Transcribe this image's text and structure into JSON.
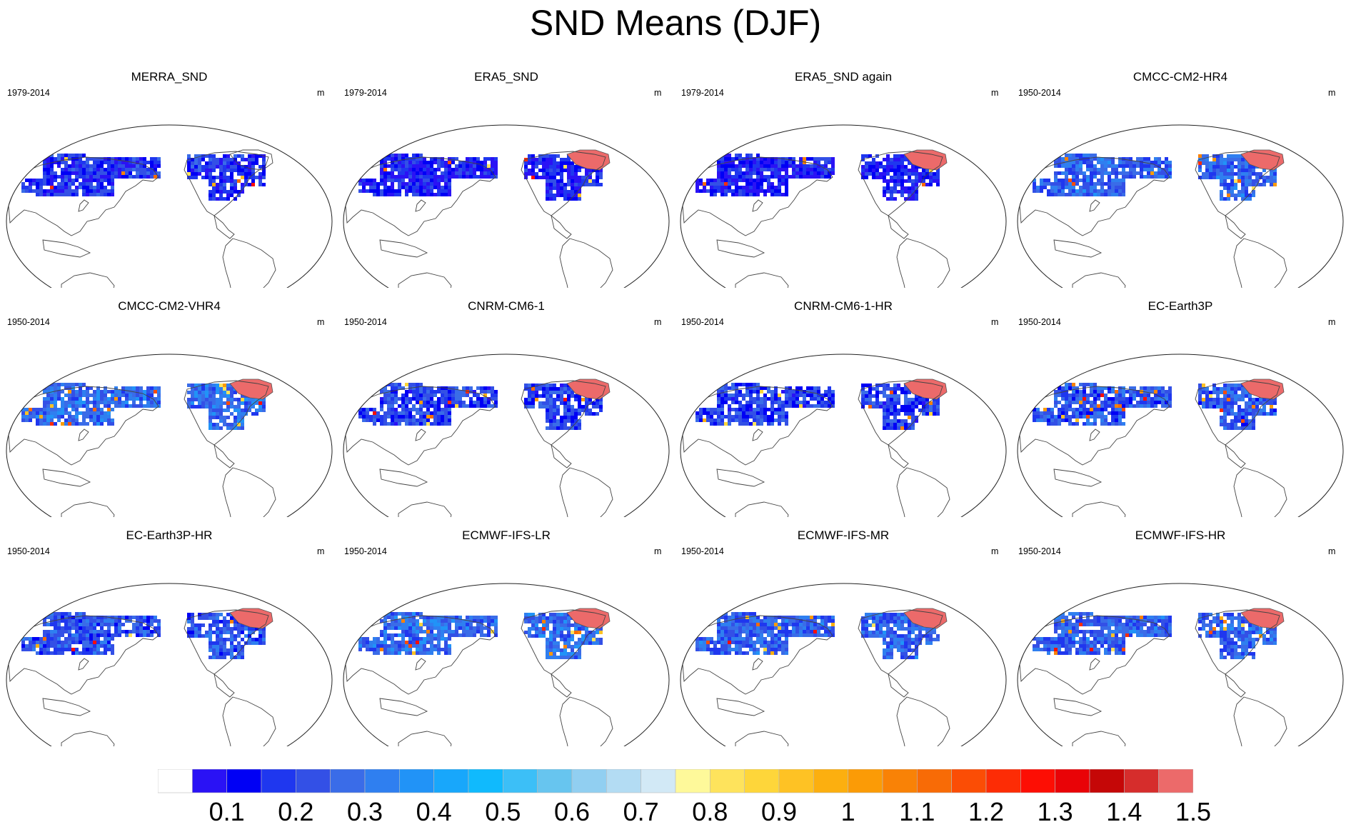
{
  "title": "SND Means (DJF)",
  "units": "m",
  "panels": [
    {
      "name": "MERRA_SND",
      "period": "1979-2014",
      "antarctica": false,
      "snow": 0.22,
      "greenland": false
    },
    {
      "name": "ERA5_SND",
      "period": "1979-2014",
      "antarctica": true,
      "snow": 0.15,
      "greenland": true
    },
    {
      "name": "ERA5_SND again",
      "period": "1979-2014",
      "antarctica": true,
      "snow": 0.15,
      "greenland": true
    },
    {
      "name": "CMCC-CM2-HR4",
      "period": "1950-2014",
      "antarctica": true,
      "snow": 0.45,
      "greenland": true
    },
    {
      "name": "CMCC-CM2-VHR4",
      "period": "1950-2014",
      "antarctica": true,
      "snow": 0.5,
      "greenland": true
    },
    {
      "name": "CNRM-CM6-1",
      "period": "1950-2014",
      "antarctica": true,
      "snow": 0.3,
      "greenland": true
    },
    {
      "name": "CNRM-CM6-1-HR",
      "period": "1950-2014",
      "antarctica": true,
      "snow": 0.3,
      "greenland": true
    },
    {
      "name": "EC-Earth3P",
      "period": "1950-2014",
      "antarctica": true,
      "snow": 0.4,
      "greenland": true
    },
    {
      "name": "EC-Earth3P-HR",
      "period": "1950-2014",
      "antarctica": true,
      "snow": 0.4,
      "greenland": true
    },
    {
      "name": "ECMWF-IFS-LR",
      "period": "1950-2014",
      "antarctica": true,
      "snow": 0.5,
      "greenland": true
    },
    {
      "name": "ECMWF-IFS-MR",
      "period": "1950-2014",
      "antarctica": true,
      "snow": 0.45,
      "greenland": true
    },
    {
      "name": "ECMWF-IFS-HR",
      "period": "1950-2014",
      "antarctica": true,
      "snow": 0.45,
      "greenland": true
    }
  ],
  "colorbar": {
    "labels": [
      "0.1",
      "0.2",
      "0.3",
      "0.4",
      "0.5",
      "0.6",
      "0.7",
      "0.8",
      "0.9",
      "1",
      "1.1",
      "1.2",
      "1.3",
      "1.4",
      "1.5"
    ],
    "colors": [
      "#ffffff",
      "#2a12f5",
      "#0000f5",
      "#1f37ef",
      "#3350e6",
      "#3a6ce8",
      "#2f7ff0",
      "#2193f7",
      "#18a7fb",
      "#10bafd",
      "#3cbff7",
      "#67c5ef",
      "#91cff1",
      "#b3dcf3",
      "#d2e9f6",
      "#fef99a",
      "#fee35c",
      "#fed63a",
      "#fec224",
      "#fcaf0f",
      "#fb9b06",
      "#f98206",
      "#f86b06",
      "#fb4d05",
      "#fd2c05",
      "#fd0e04",
      "#e90307",
      "#c50707",
      "#d62d2c",
      "#ec6a6a"
    ]
  }
}
